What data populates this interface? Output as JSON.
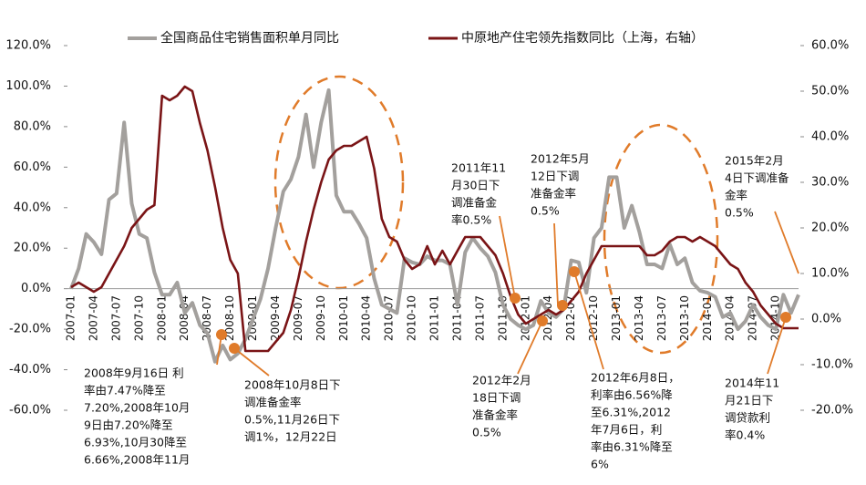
{
  "chart_data": {
    "type": "line",
    "legend": "top",
    "categories": [
      "2007-01",
      null,
      null,
      "2007-04",
      null,
      null,
      "2007-07",
      null,
      null,
      "2007-10",
      null,
      null,
      "2008-01",
      null,
      null,
      "2008-04",
      null,
      null,
      "2008-07",
      null,
      null,
      "2008-10",
      null,
      null,
      "2009-01",
      null,
      null,
      "2009-04",
      null,
      null,
      "2009-07",
      null,
      null,
      "2009-10",
      null,
      null,
      "2010-01",
      null,
      null,
      "2010-04",
      null,
      null,
      "2010-07",
      null,
      null,
      "2010-10",
      null,
      null,
      "2011-01",
      null,
      null,
      "2011-04",
      null,
      null,
      "2011-07",
      null,
      null,
      "2011-10",
      null,
      null,
      "2012-01",
      null,
      null,
      "2012-04",
      null,
      null,
      "2012-07",
      null,
      null,
      "2012-10",
      null,
      null,
      "2013-01",
      null,
      null,
      "2013-04",
      null,
      null,
      "2013-07",
      null,
      null,
      "2013-10",
      null,
      null,
      "2014-01",
      null,
      null,
      "2014-04",
      null,
      null,
      "2014-07",
      null,
      null,
      "2014-10",
      null,
      null,
      null
    ],
    "series": [
      {
        "name": "全国商品住宅销售面积单月同比",
        "color": "#a3a09d",
        "axis": "y",
        "values": [
          0,
          10,
          27,
          23,
          17,
          44,
          47,
          82,
          42,
          27,
          25,
          8,
          -3,
          -3,
          3,
          -12,
          -7,
          -18,
          -22,
          -36,
          -28,
          -35,
          -32,
          -25,
          -15,
          -5,
          10,
          30,
          48,
          54,
          65,
          86,
          60,
          82,
          98,
          46,
          38,
          38,
          32,
          25,
          5,
          -8,
          -10,
          -12,
          15,
          13,
          12,
          16,
          14,
          14,
          12,
          -8,
          18,
          25,
          20,
          16,
          8,
          -8,
          -15,
          -18,
          -20,
          -18,
          -6,
          -12,
          -14,
          -10,
          14,
          13,
          -2,
          25,
          30,
          55,
          55,
          30,
          41,
          28,
          12,
          12,
          10,
          22,
          12,
          15,
          3,
          -1,
          -2,
          -4,
          -14,
          -12,
          -20,
          -16,
          -8,
          -14,
          -18,
          -20,
          -3,
          -12,
          -3
        ]
      },
      {
        "name": "中原地产住宅领先指数同比（上海，右轴）",
        "color": "#7a1416",
        "axis": "y2",
        "values": [
          7,
          8,
          7,
          6,
          7,
          10,
          13,
          16,
          20,
          22,
          24,
          25,
          49,
          48,
          49,
          51,
          50,
          43,
          37,
          29,
          20,
          13,
          10,
          -7,
          -7,
          -7,
          -7,
          -5,
          -3,
          2,
          9,
          17,
          24,
          30,
          35,
          37,
          38,
          38,
          39,
          40,
          33,
          22,
          18,
          17,
          13,
          11,
          12,
          16,
          12,
          15,
          12,
          15,
          18,
          18,
          18,
          16,
          14,
          10,
          5,
          1,
          -1,
          0,
          1,
          2,
          1,
          2,
          4,
          6,
          10,
          13,
          16,
          16,
          16,
          16,
          16,
          16,
          14,
          14,
          15,
          17,
          18,
          18,
          17,
          18,
          17,
          16,
          14,
          12,
          11,
          8,
          6,
          3,
          1,
          -1,
          -2,
          -2,
          -2
        ]
      }
    ],
    "ylim": [
      -60,
      120
    ],
    "yticks": [
      {
        "value": -60,
        "label": "-60.0%"
      },
      {
        "value": -40,
        "label": "-40.0%"
      },
      {
        "value": -20,
        "label": "-20.0%"
      },
      {
        "value": 0,
        "label": "0.0%"
      },
      {
        "value": 20,
        "label": "20.0%"
      },
      {
        "value": 40,
        "label": "40.0%"
      },
      {
        "value": 60,
        "label": "60.0%"
      },
      {
        "value": 80,
        "label": "80.0%"
      },
      {
        "value": 100,
        "label": "100.0%"
      },
      {
        "value": 120,
        "label": "120.0%"
      }
    ],
    "y2lim": [
      -20,
      60
    ],
    "y2ticks": [
      {
        "value": -20,
        "label": "-20.0%"
      },
      {
        "value": -10,
        "label": "-10.0%"
      },
      {
        "value": 0,
        "label": "0.0%"
      },
      {
        "value": 10,
        "label": "10.0%"
      },
      {
        "value": 20,
        "label": "20.0%"
      },
      {
        "value": 30,
        "label": "30.0%"
      },
      {
        "value": 40,
        "label": "40.0%"
      },
      {
        "value": 50,
        "label": "50.0%"
      },
      {
        "value": 60,
        "label": "60.0%"
      }
    ],
    "annotations": [
      {
        "lines": [
          "2008年9月16日 利",
          "率由7.47%降至",
          "7.20%,2008年10月",
          "9日由7.20%降至",
          "6.93%,10月30降至",
          "6.66%,2008年11月"
        ]
      },
      {
        "lines": [
          "2008年10月8日下",
          "调准备金率",
          "0.5%,11月26日下",
          "调1%，12月22日"
        ]
      },
      {
        "lines": [
          "2011年11",
          "月30日下",
          "调准备金",
          "率0.5%"
        ]
      },
      {
        "lines": [
          "2012年5月",
          "12日下调",
          "准备金率",
          "0.5%"
        ]
      },
      {
        "lines": [
          "2012年2月",
          "18日下调",
          "准备金率",
          "0.5%"
        ]
      },
      {
        "lines": [
          "2012年6月8日，",
          "利率由6.56%降",
          "至6.31%,2012",
          "年7月6日，利",
          "率由6.31%降至",
          "6%"
        ]
      },
      {
        "lines": [
          "2015年2月",
          "4日下调准备",
          "金率",
          "0.5%"
        ]
      },
      {
        "lines": [
          "2014年11",
          "月21日下",
          "调贷款利",
          "率0.4%"
        ]
      }
    ]
  }
}
